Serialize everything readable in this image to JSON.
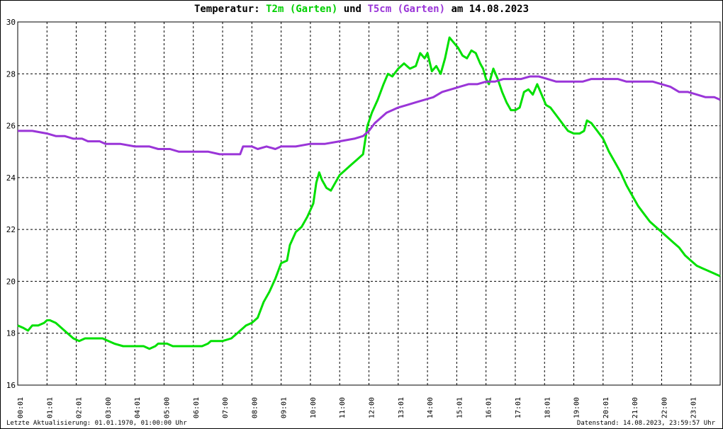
{
  "title": {
    "prefix": "Temperatur:",
    "series1": "T2m (Garten)",
    "connector": "und",
    "series2": "T5cm (Garten)",
    "suffix": "am 14.08.2023"
  },
  "footer": {
    "last_update": "Letzte Aktualisierung: 01.01.1970, 01:00:00 Uhr",
    "data_status": "Datenstand: 14.08.2023, 23:59:57 Uhr"
  },
  "chart_data": {
    "type": "line",
    "x_ticks": [
      "00:01",
      "01:01",
      "02:01",
      "03:00",
      "04:01",
      "05:00",
      "06:01",
      "07:00",
      "08:00",
      "09:01",
      "10:00",
      "11:00",
      "12:00",
      "13:01",
      "14:00",
      "15:01",
      "16:01",
      "17:01",
      "18:01",
      "19:00",
      "20:01",
      "21:00",
      "22:00",
      "23:01"
    ],
    "y_ticks": [
      16,
      18,
      20,
      22,
      24,
      26,
      28,
      30
    ],
    "ylim": [
      16,
      30
    ],
    "xlim_hours": [
      0,
      24
    ],
    "grid": true,
    "series": [
      {
        "name": "T2m (Garten)",
        "color": "#00e000",
        "points": [
          [
            0.0,
            18.3
          ],
          [
            0.2,
            18.2
          ],
          [
            0.35,
            18.1
          ],
          [
            0.5,
            18.3
          ],
          [
            0.7,
            18.3
          ],
          [
            0.9,
            18.4
          ],
          [
            1.0,
            18.5
          ],
          [
            1.1,
            18.5
          ],
          [
            1.3,
            18.4
          ],
          [
            1.5,
            18.2
          ],
          [
            1.7,
            18.0
          ],
          [
            1.9,
            17.8
          ],
          [
            2.1,
            17.7
          ],
          [
            2.3,
            17.8
          ],
          [
            2.6,
            17.8
          ],
          [
            2.9,
            17.8
          ],
          [
            3.1,
            17.7
          ],
          [
            3.3,
            17.6
          ],
          [
            3.6,
            17.5
          ],
          [
            4.0,
            17.5
          ],
          [
            4.3,
            17.5
          ],
          [
            4.5,
            17.4
          ],
          [
            4.7,
            17.5
          ],
          [
            4.8,
            17.6
          ],
          [
            5.1,
            17.6
          ],
          [
            5.3,
            17.5
          ],
          [
            5.7,
            17.5
          ],
          [
            6.0,
            17.5
          ],
          [
            6.3,
            17.5
          ],
          [
            6.5,
            17.6
          ],
          [
            6.6,
            17.7
          ],
          [
            7.0,
            17.7
          ],
          [
            7.3,
            17.8
          ],
          [
            7.5,
            18.0
          ],
          [
            7.8,
            18.3
          ],
          [
            8.0,
            18.4
          ],
          [
            8.2,
            18.6
          ],
          [
            8.4,
            19.2
          ],
          [
            8.6,
            19.6
          ],
          [
            8.8,
            20.1
          ],
          [
            9.0,
            20.7
          ],
          [
            9.2,
            20.8
          ],
          [
            9.3,
            21.4
          ],
          [
            9.5,
            21.9
          ],
          [
            9.7,
            22.1
          ],
          [
            9.9,
            22.5
          ],
          [
            10.1,
            23.0
          ],
          [
            10.2,
            23.8
          ],
          [
            10.3,
            24.2
          ],
          [
            10.4,
            23.9
          ],
          [
            10.55,
            23.6
          ],
          [
            10.7,
            23.5
          ],
          [
            10.85,
            23.8
          ],
          [
            11.0,
            24.1
          ],
          [
            11.2,
            24.3
          ],
          [
            11.4,
            24.5
          ],
          [
            11.6,
            24.7
          ],
          [
            11.8,
            24.9
          ],
          [
            11.95,
            26.0
          ],
          [
            12.1,
            26.5
          ],
          [
            12.3,
            27.0
          ],
          [
            12.5,
            27.6
          ],
          [
            12.65,
            28.0
          ],
          [
            12.8,
            27.9
          ],
          [
            13.0,
            28.2
          ],
          [
            13.2,
            28.4
          ],
          [
            13.4,
            28.2
          ],
          [
            13.6,
            28.3
          ],
          [
            13.75,
            28.8
          ],
          [
            13.9,
            28.6
          ],
          [
            14.0,
            28.8
          ],
          [
            14.15,
            28.1
          ],
          [
            14.3,
            28.3
          ],
          [
            14.45,
            28.0
          ],
          [
            14.6,
            28.6
          ],
          [
            14.75,
            29.4
          ],
          [
            14.9,
            29.2
          ],
          [
            15.05,
            29.0
          ],
          [
            15.2,
            28.7
          ],
          [
            15.35,
            28.6
          ],
          [
            15.5,
            28.9
          ],
          [
            15.65,
            28.8
          ],
          [
            15.8,
            28.4
          ],
          [
            15.9,
            28.2
          ],
          [
            16.0,
            27.8
          ],
          [
            16.1,
            27.6
          ],
          [
            16.25,
            28.2
          ],
          [
            16.4,
            27.8
          ],
          [
            16.55,
            27.3
          ],
          [
            16.7,
            26.9
          ],
          [
            16.85,
            26.6
          ],
          [
            17.0,
            26.6
          ],
          [
            17.15,
            26.7
          ],
          [
            17.3,
            27.3
          ],
          [
            17.45,
            27.4
          ],
          [
            17.6,
            27.2
          ],
          [
            17.75,
            27.6
          ],
          [
            17.9,
            27.2
          ],
          [
            18.05,
            26.8
          ],
          [
            18.2,
            26.7
          ],
          [
            18.4,
            26.4
          ],
          [
            18.6,
            26.1
          ],
          [
            18.8,
            25.8
          ],
          [
            19.0,
            25.7
          ],
          [
            19.2,
            25.7
          ],
          [
            19.35,
            25.8
          ],
          [
            19.45,
            26.2
          ],
          [
            19.6,
            26.1
          ],
          [
            19.8,
            25.8
          ],
          [
            20.0,
            25.5
          ],
          [
            20.2,
            25.0
          ],
          [
            20.4,
            24.6
          ],
          [
            20.6,
            24.2
          ],
          [
            20.8,
            23.7
          ],
          [
            21.0,
            23.3
          ],
          [
            21.2,
            22.9
          ],
          [
            21.4,
            22.6
          ],
          [
            21.6,
            22.3
          ],
          [
            21.8,
            22.1
          ],
          [
            22.0,
            21.9
          ],
          [
            22.2,
            21.7
          ],
          [
            22.4,
            21.5
          ],
          [
            22.6,
            21.3
          ],
          [
            22.8,
            21.0
          ],
          [
            23.0,
            20.8
          ],
          [
            23.2,
            20.6
          ],
          [
            23.4,
            20.5
          ],
          [
            23.6,
            20.4
          ],
          [
            23.8,
            20.3
          ],
          [
            24.0,
            20.2
          ]
        ]
      },
      {
        "name": "T5cm (Garten)",
        "color": "#9a35d8",
        "points": [
          [
            0.0,
            25.8
          ],
          [
            0.5,
            25.8
          ],
          [
            1.0,
            25.7
          ],
          [
            1.3,
            25.6
          ],
          [
            1.6,
            25.6
          ],
          [
            1.9,
            25.5
          ],
          [
            2.2,
            25.5
          ],
          [
            2.4,
            25.4
          ],
          [
            2.8,
            25.4
          ],
          [
            3.0,
            25.3
          ],
          [
            3.5,
            25.3
          ],
          [
            4.0,
            25.2
          ],
          [
            4.5,
            25.2
          ],
          [
            4.8,
            25.1
          ],
          [
            5.2,
            25.1
          ],
          [
            5.5,
            25.0
          ],
          [
            6.0,
            25.0
          ],
          [
            6.5,
            25.0
          ],
          [
            6.9,
            24.9
          ],
          [
            7.4,
            24.9
          ],
          [
            7.6,
            24.9
          ],
          [
            7.7,
            25.2
          ],
          [
            8.0,
            25.2
          ],
          [
            8.2,
            25.1
          ],
          [
            8.5,
            25.2
          ],
          [
            8.8,
            25.1
          ],
          [
            9.0,
            25.2
          ],
          [
            9.5,
            25.2
          ],
          [
            10.0,
            25.3
          ],
          [
            10.5,
            25.3
          ],
          [
            11.0,
            25.4
          ],
          [
            11.5,
            25.5
          ],
          [
            11.8,
            25.6
          ],
          [
            12.0,
            25.8
          ],
          [
            12.2,
            26.1
          ],
          [
            12.4,
            26.3
          ],
          [
            12.6,
            26.5
          ],
          [
            12.8,
            26.6
          ],
          [
            13.0,
            26.7
          ],
          [
            13.3,
            26.8
          ],
          [
            13.6,
            26.9
          ],
          [
            13.9,
            27.0
          ],
          [
            14.2,
            27.1
          ],
          [
            14.5,
            27.3
          ],
          [
            14.8,
            27.4
          ],
          [
            15.1,
            27.5
          ],
          [
            15.4,
            27.6
          ],
          [
            15.7,
            27.6
          ],
          [
            16.0,
            27.7
          ],
          [
            16.3,
            27.7
          ],
          [
            16.6,
            27.8
          ],
          [
            16.9,
            27.8
          ],
          [
            17.2,
            27.8
          ],
          [
            17.5,
            27.9
          ],
          [
            17.8,
            27.9
          ],
          [
            18.1,
            27.8
          ],
          [
            18.4,
            27.7
          ],
          [
            18.7,
            27.7
          ],
          [
            19.0,
            27.7
          ],
          [
            19.3,
            27.7
          ],
          [
            19.6,
            27.8
          ],
          [
            19.9,
            27.8
          ],
          [
            20.2,
            27.8
          ],
          [
            20.5,
            27.8
          ],
          [
            20.8,
            27.7
          ],
          [
            21.1,
            27.7
          ],
          [
            21.4,
            27.7
          ],
          [
            21.7,
            27.7
          ],
          [
            22.0,
            27.6
          ],
          [
            22.3,
            27.5
          ],
          [
            22.6,
            27.3
          ],
          [
            22.9,
            27.3
          ],
          [
            23.2,
            27.2
          ],
          [
            23.5,
            27.1
          ],
          [
            23.8,
            27.1
          ],
          [
            24.0,
            27.0
          ]
        ]
      }
    ]
  }
}
